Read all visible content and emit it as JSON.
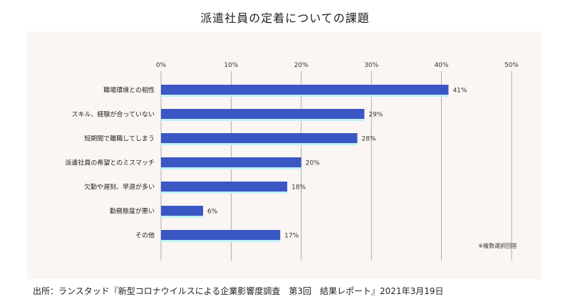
{
  "header": {
    "title": "派遣社員の定着についての課題"
  },
  "footer": {
    "source": "出所：ランスタッド『新型コロナウイルスによる企業影響度調査　第3回　結果レポート』2021年3月19日"
  },
  "chart_data": {
    "type": "bar",
    "orientation": "horizontal",
    "title": "派遣社員の定着についての課題",
    "categories": [
      "職場環境との相性",
      "スキル、経験が合っていない",
      "短期間で離職してしまう",
      "派遣社員の希望とのミスマッチ",
      "欠勤や遅刻、早退が多い",
      "勤務態度が悪い",
      "その他"
    ],
    "values": [
      41,
      29,
      28,
      20,
      18,
      6,
      17
    ],
    "value_labels": [
      "41%",
      "29%",
      "28%",
      "20%",
      "18%",
      "6%",
      "17%"
    ],
    "xlim": [
      0,
      50
    ],
    "xticks": [
      0,
      10,
      20,
      30,
      40,
      50
    ],
    "xtick_labels": [
      "0%",
      "10%",
      "20%",
      "30%",
      "40%",
      "50%"
    ],
    "grid": true,
    "note": "※複数選択回答",
    "colors": {
      "bar": "#3a57c4",
      "bar_shadow": "#bff3f6",
      "grid": "#9a9a9a",
      "panel": "#fbf6f3"
    }
  }
}
